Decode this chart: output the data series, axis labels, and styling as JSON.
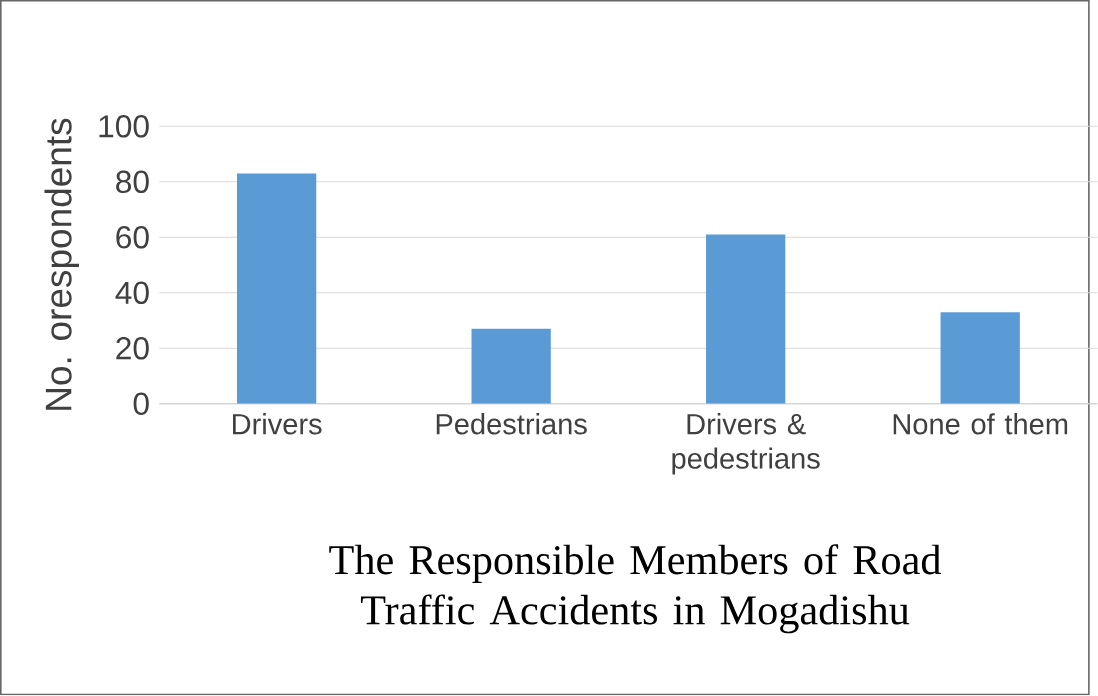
{
  "chart_data": {
    "type": "bar",
    "title": "The Responsible Members of Road Traffic Accidents in Mogadishu",
    "ylabel": "No. orespondents",
    "categories": [
      "Drivers",
      "Pedestrians",
      "Drivers & pedestrians",
      "None of them"
    ],
    "values": [
      83,
      27,
      61,
      33
    ],
    "color": "#5b9bd5",
    "ylim": [
      0,
      100
    ],
    "yticks": [
      0,
      20,
      40,
      60,
      80,
      100
    ],
    "grid": "y"
  }
}
